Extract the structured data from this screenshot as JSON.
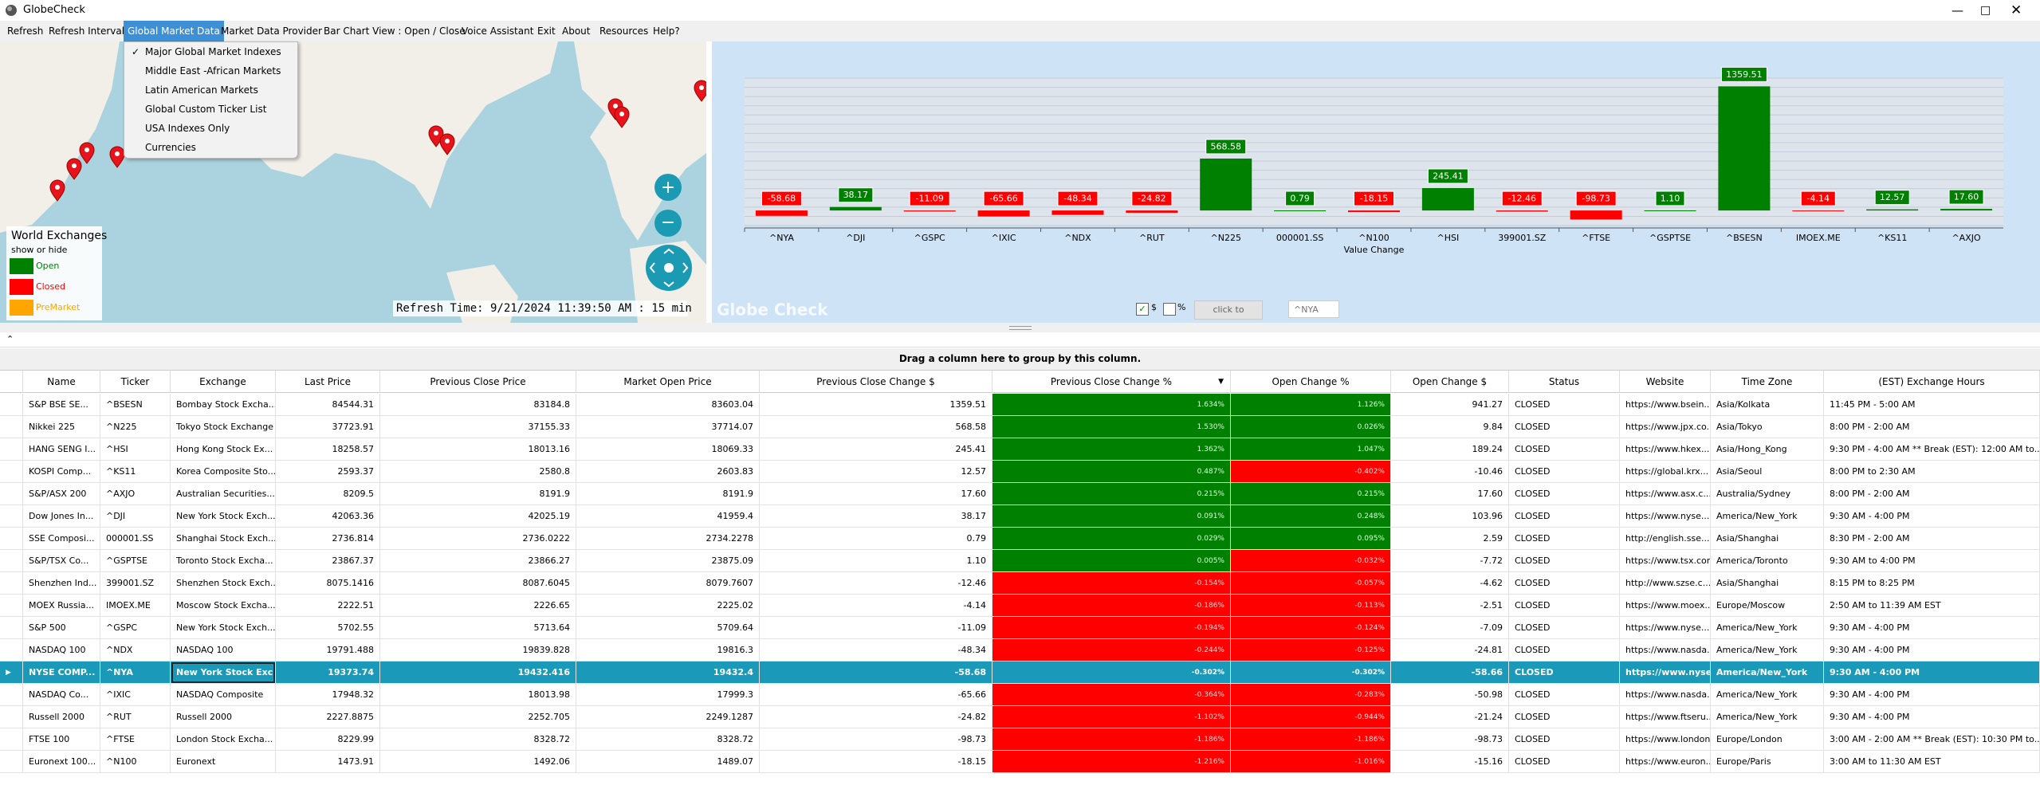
{
  "window": {
    "title": "GlobeCheck"
  },
  "menu": [
    "Refresh",
    "Refresh Interval",
    "Global Market Data",
    "Market Data Provider",
    "Bar Chart View : Open / Close",
    "Voice Assistant",
    "Exit",
    "About",
    "Resources",
    "Help?"
  ],
  "dropdown": {
    "items": [
      "Major Global Market Indexes",
      "Middle East -African Markets",
      "Latin American Markets",
      "Global Custom Ticker List",
      "USA Indexes Only",
      "Currencies"
    ]
  },
  "map": {
    "legend_title": "World Exchanges",
    "legend_subtitle": "show or hide",
    "legend_items": [
      "Open",
      "Closed",
      "PreMarket"
    ],
    "refresh_time": "Refresh Time: 9/21/2024 11:39:50 AM : 15 min"
  },
  "chart": {
    "type": "bar",
    "x_label": "Value Change",
    "watermark": "Globe Check",
    "categories": [
      "^NYA",
      "^DJI",
      "^GSPC",
      "^IXIC",
      "^NDX",
      "^RUT",
      "^N225",
      "000001.SS",
      "^N100",
      "^HSI",
      "399001.SZ",
      "^FTSE",
      "^GSPTSE",
      "^BSESN",
      "IMOEX.ME",
      "^KS11",
      "^AXJO"
    ],
    "values": [
      -58.68,
      38.17,
      -11.09,
      -65.66,
      -48.34,
      -24.82,
      568.58,
      0.79,
      -18.15,
      245.41,
      -12.46,
      -98.73,
      1.1,
      1359.51,
      -4.14,
      12.57,
      17.6
    ],
    "value_labels": [
      "-58.68",
      "38.17",
      "-11.09",
      "-65.66",
      "-48.34",
      "-24.82",
      "568.58",
      "0.79",
      "-18.15",
      "245.41",
      "-12.46",
      "-98.73",
      "1.10",
      "1359.51",
      "-4.14",
      "12.57",
      "17.60"
    ],
    "ylim": [
      -165,
      1450
    ],
    "colors": {
      "positive": "#008000",
      "negative": "#ff0000"
    }
  },
  "controls": {
    "dollar": "$",
    "percent": "%",
    "button": "click to remove",
    "input": "^NYA"
  },
  "table": {
    "group_hint": "Drag a column here to group by this column.",
    "columns": [
      "Name",
      "Ticker",
      "Exchange",
      "Last Price",
      "Previous Close Price",
      "Market Open Price",
      "Previous Close Change $",
      "Previous Close Change %",
      "Open Change %",
      "Open Change $",
      "Status",
      "Website",
      "Time Zone",
      "(EST) Exchange Hours"
    ],
    "selected_row": 12,
    "rows": [
      [
        "S&P BSE SE...",
        "^BSESN",
        "Bombay Stock Excha...",
        "84544.31",
        "83184.8",
        "83603.04",
        "1359.51",
        "1.634%",
        "1.126%",
        "941.27",
        "CLOSED",
        "https://www.bsein...",
        "Asia/Kolkata",
        "11:45 PM - 5:00 AM"
      ],
      [
        "Nikkei 225",
        "^N225",
        "Tokyo Stock Exchange",
        "37723.91",
        "37155.33",
        "37714.07",
        "568.58",
        "1.530%",
        "0.026%",
        "9.84",
        "CLOSED",
        "https://www.jpx.co...",
        "Asia/Tokyo",
        "8:00 PM - 2:00 AM"
      ],
      [
        "HANG SENG I...",
        "^HSI",
        "Hong Kong Stock Ex...",
        "18258.57",
        "18013.16",
        "18069.33",
        "245.41",
        "1.362%",
        "1.047%",
        "189.24",
        "CLOSED",
        "https://www.hkex...",
        "Asia/Hong_Kong",
        "9:30 PM - 4:00 AM ** Break (EST): 12:00 AM to..."
      ],
      [
        "KOSPI Comp...",
        "^KS11",
        "Korea Composite Sto...",
        "2593.37",
        "2580.8",
        "2603.83",
        "12.57",
        "0.487%",
        "-0.402%",
        "-10.46",
        "CLOSED",
        "https://global.krx...",
        "Asia/Seoul",
        "8:00 PM to 2:30 AM"
      ],
      [
        "S&P/ASX 200",
        "^AXJO",
        "Australian Securities...",
        "8209.5",
        "8191.9",
        "8191.9",
        "17.60",
        "0.215%",
        "0.215%",
        "17.60",
        "CLOSED",
        "https://www.asx.c...",
        "Australia/Sydney",
        "8:00 PM - 2:00 AM"
      ],
      [
        "Dow Jones In...",
        "^DJI",
        "New York Stock Exch...",
        "42063.36",
        "42025.19",
        "41959.4",
        "38.17",
        "0.091%",
        "0.248%",
        "103.96",
        "CLOSED",
        "https://www.nyse...",
        "America/New_York",
        "9:30 AM - 4:00 PM"
      ],
      [
        "SSE Composi...",
        "000001.SS",
        "Shanghai Stock Exch...",
        "2736.814",
        "2736.0222",
        "2734.2278",
        "0.79",
        "0.029%",
        "0.095%",
        "2.59",
        "CLOSED",
        "http://english.sse...",
        "Asia/Shanghai",
        "8:30 PM - 2:00 AM"
      ],
      [
        "S&P/TSX Co...",
        "^GSPTSE",
        "Toronto Stock Excha...",
        "23867.37",
        "23866.27",
        "23875.09",
        "1.10",
        "0.005%",
        "-0.032%",
        "-7.72",
        "CLOSED",
        "https://www.tsx.com",
        "America/Toronto",
        "9:30 AM to 4:00 PM"
      ],
      [
        "Shenzhen Ind...",
        "399001.SZ",
        "Shenzhen Stock Exch...",
        "8075.1416",
        "8087.6045",
        "8079.7607",
        "-12.46",
        "-0.154%",
        "-0.057%",
        "-4.62",
        "CLOSED",
        "http://www.szse.c...",
        "Asia/Shanghai",
        "8:15 PM to 8:25 PM"
      ],
      [
        "MOEX Russia...",
        "IMOEX.ME",
        "Moscow Stock Excha...",
        "2222.51",
        "2226.65",
        "2225.02",
        "-4.14",
        "-0.186%",
        "-0.113%",
        "-2.51",
        "CLOSED",
        "https://www.moex...",
        "Europe/Moscow",
        "2:50 AM to 11:39 AM EST"
      ],
      [
        "S&P 500",
        "^GSPC",
        "New York Stock Exch...",
        "5702.55",
        "5713.64",
        "5709.64",
        "-11.09",
        "-0.194%",
        "-0.124%",
        "-7.09",
        "CLOSED",
        "https://www.nyse...",
        "America/New_York",
        "9:30 AM - 4:00 PM"
      ],
      [
        "NASDAQ 100",
        "^NDX",
        "NASDAQ 100",
        "19791.488",
        "19839.828",
        "19816.3",
        "-48.34",
        "-0.244%",
        "-0.125%",
        "-24.81",
        "CLOSED",
        "https://www.nasda...",
        "America/New_York",
        "9:30 AM - 4:00 PM"
      ],
      [
        "NYSE COMP...",
        "^NYA",
        "New York Stock Exch...",
        "19373.74",
        "19432.416",
        "19432.4",
        "-58.68",
        "-0.302%",
        "-0.302%",
        "-58.66",
        "CLOSED",
        "https://www.nyse...",
        "America/New_York",
        "9:30 AM - 4:00 PM"
      ],
      [
        "NASDAQ Co...",
        "^IXIC",
        "NASDAQ Composite",
        "17948.32",
        "18013.98",
        "17999.3",
        "-65.66",
        "-0.364%",
        "-0.283%",
        "-50.98",
        "CLOSED",
        "https://www.nasda...",
        "America/New_York",
        "9:30 AM - 4:00 PM"
      ],
      [
        "Russell 2000",
        "^RUT",
        "Russell 2000",
        "2227.8875",
        "2252.705",
        "2249.1287",
        "-24.82",
        "-1.102%",
        "-0.944%",
        "-21.24",
        "CLOSED",
        "https://www.ftseru...",
        "America/New_York",
        "9:30 AM - 4:00 PM"
      ],
      [
        "FTSE 100",
        "^FTSE",
        "London Stock Excha...",
        "8229.99",
        "8328.72",
        "8328.72",
        "-98.73",
        "-1.186%",
        "-1.186%",
        "-98.73",
        "CLOSED",
        "https://www.london...",
        "Europe/London",
        "3:00 AM - 2:00 AM ** Break (EST): 10:30 PM to..."
      ],
      [
        "Euronext 100...",
        "^N100",
        "Euronext",
        "1473.91",
        "1492.06",
        "1489.07",
        "-18.15",
        "-1.216%",
        "-1.016%",
        "-15.16",
        "CLOSED",
        "https://www.euron...",
        "Europe/Paris",
        "3:00 AM to 11:30 AM EST"
      ]
    ]
  }
}
